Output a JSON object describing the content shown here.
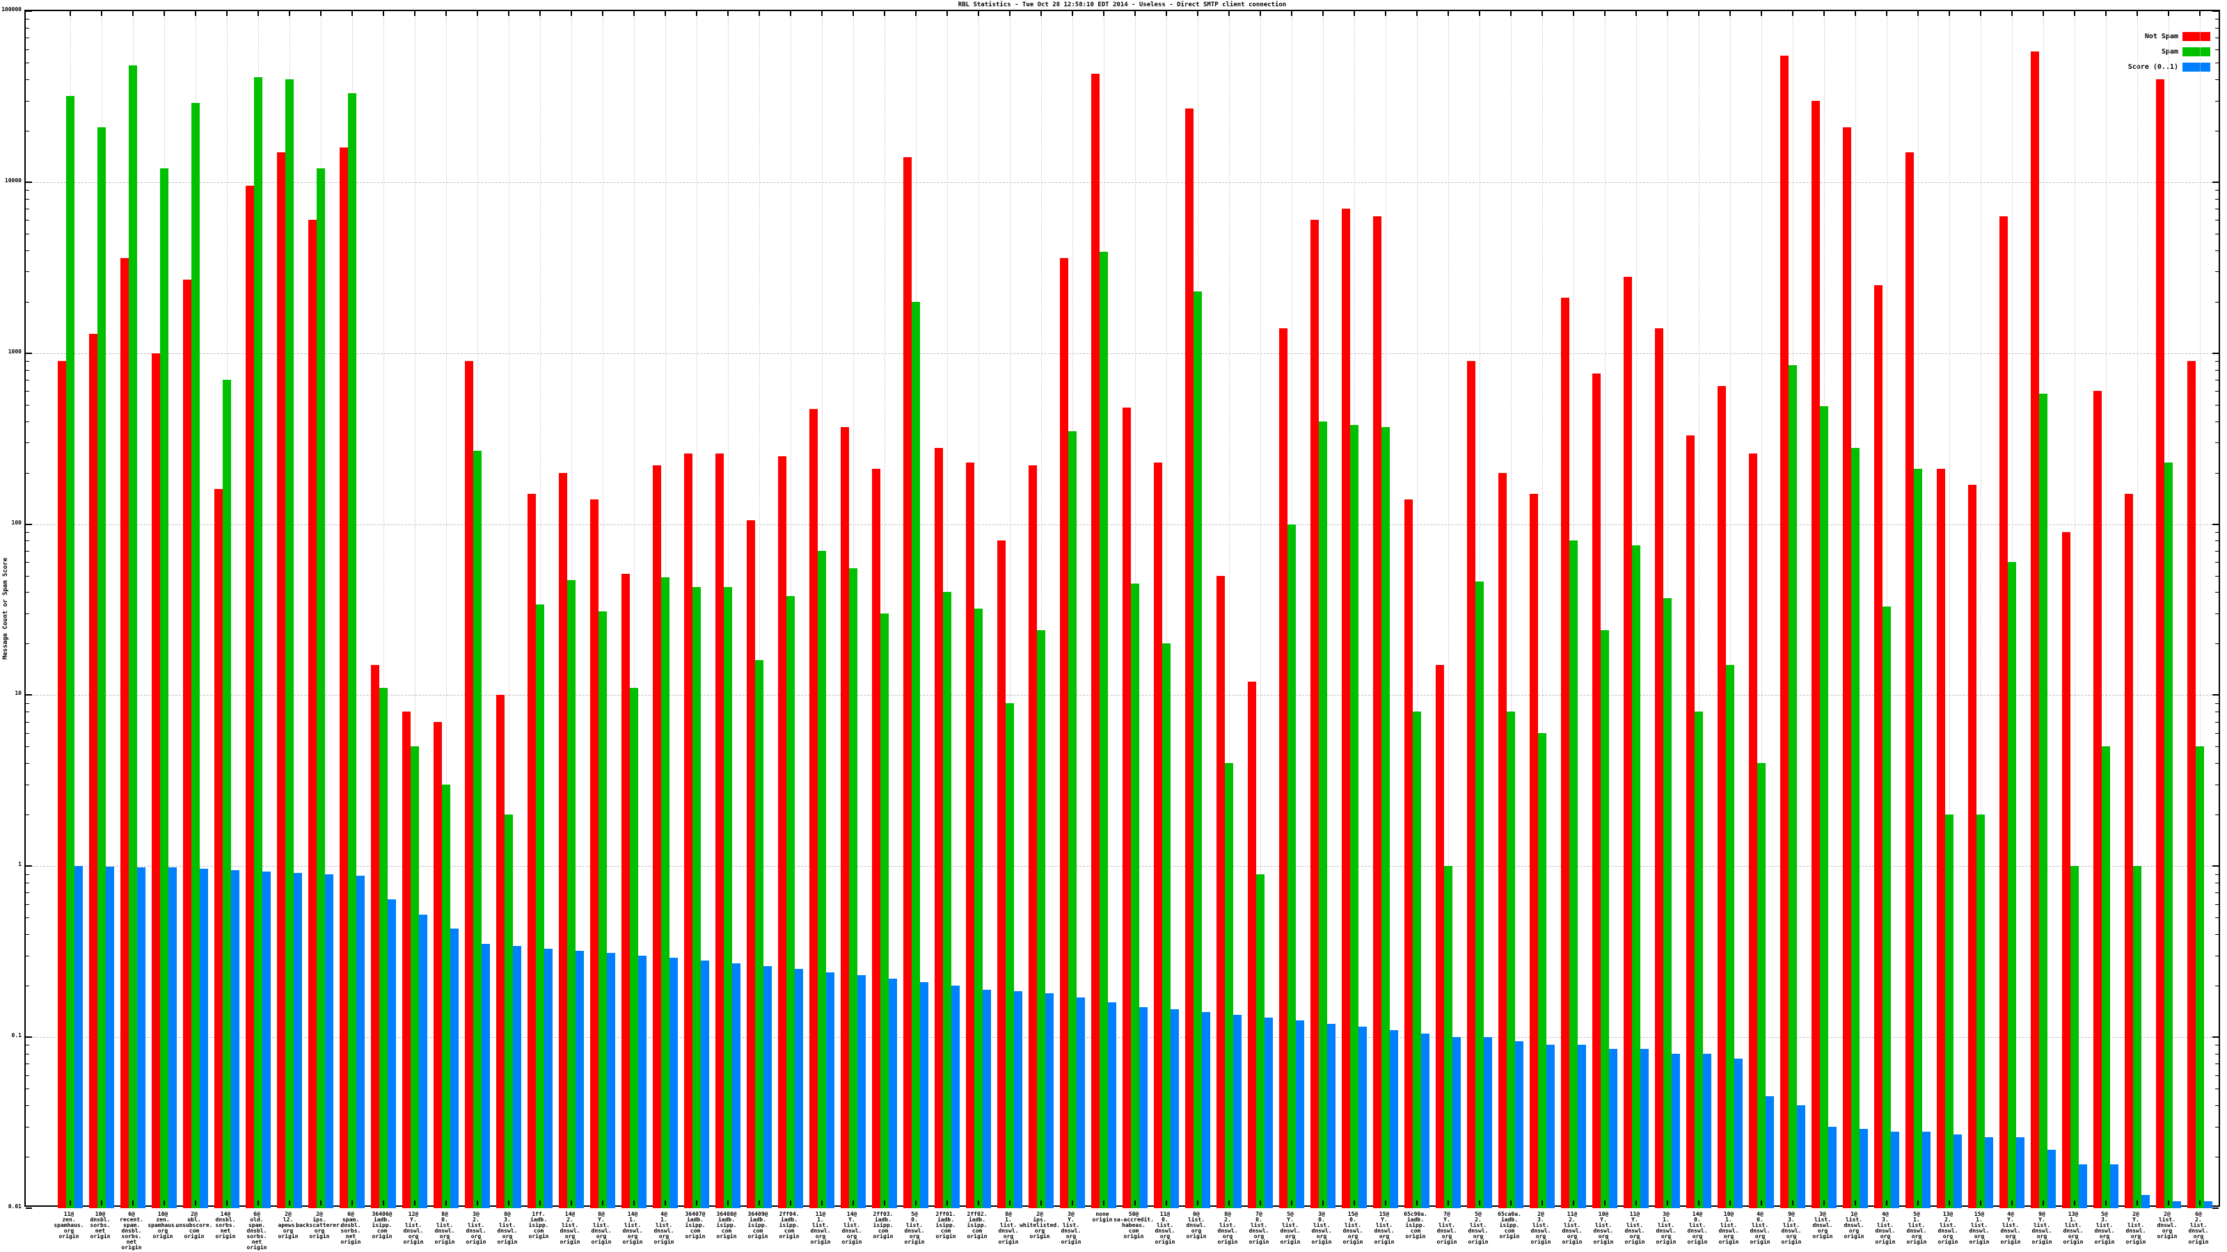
{
  "chart_data": {
    "type": "bar",
    "title": "RBL Statistics - Tue Oct 28 12:58:10 EDT 2014 - Useless - Direct SMTP client connection",
    "ylabel": "Message Count or Spam Score",
    "xlabel": "",
    "yscale": "log",
    "ylim": [
      0.01,
      100000
    ],
    "yticks": [
      100000,
      10000,
      1000,
      100,
      10,
      1,
      0.1,
      0.01
    ],
    "grid": true,
    "legend_position": "top-right",
    "axis_color": "#000000",
    "grid_color": "#bdbdbd",
    "categories": [
      "11@zen.spamhaus.org origin",
      "10@dnsbl.sorbs.net origin",
      "6@recent.spam.dnsbl.sorbs.net origin",
      "10@zen.spamhaus.org origin",
      "2@ubl.unsubscore.com origin",
      "14@dnsbl.sorbs.net origin",
      "6@old.spam.dnsbl.sorbs.net origin",
      "2@l2.apews.org origin",
      "2@ips.backscatterer.org origin",
      "6@spam.dnsbl.sorbs.net origin",
      "36406@iadb.isipp.com origin",
      "12@Y.list.dnswl.org origin",
      "8@0.list.dnswl.org origin",
      "3@2.list.dnswl.org origin",
      "8@3.list.dnswl.org origin",
      "1ff.iadb.isipp.com origin",
      "14@2.list.dnswl.org origin",
      "8@Y.list.dnswl.org origin",
      "14@1.list.dnswl.org origin",
      "4@1.list.dnswl.org origin",
      "36407@iadb.isipp.com origin",
      "36408@iadb.isipp.com origin",
      "36409@iadb.isipp.com origin",
      "2ff04.iadb.isipp.com origin",
      "11@1.list.dnswl.org origin",
      "14@Y.list.dnswl.org origin",
      "2ff03.iadb.isipp.com origin",
      "5@0.list.dnswl.org origin",
      "2ff01.iadb.isipp.com origin",
      "2ff02.iadb.isipp.com origin",
      "8@1.list.dnswl.org origin",
      "2@ips.whitelisted.org origin",
      "3@Y.list.dnswl.org origin",
      "none origin",
      "50@sa-accredit.habeas.com origin",
      "11@0.list.dnswl.org origin",
      "0@list.dnswl.org origin",
      "8@2.list.dnswl.org origin",
      "7@0.list.dnswl.org origin",
      "5@Y.list.dnswl.org origin",
      "3@0.list.dnswl.org origin",
      "15@0.list.dnswl.org origin",
      "15@Y.list.dnswl.org origin",
      "65c90a.iadb.isipp.com origin",
      "7@Y.list.dnswl.org origin",
      "5@2.list.dnswl.org origin",
      "65ca0a.iadb.isipp.com origin",
      "2@3.list.dnswl.org origin",
      "11@2.list.dnswl.org origin",
      "10@Y.list.dnswl.org origin",
      "11@Y.list.dnswl.org origin",
      "3@1.list.dnswl.org origin",
      "14@0.list.dnswl.org origin",
      "10@1.list.dnswl.org origin",
      "4@0.list.dnswl.org origin",
      "9@3.list.dnswl.org origin",
      "3@list.dnswl.org origin",
      "1@list.dnswl.org origin",
      "4@3.list.dnswl.org origin",
      "5@1.list.dnswl.org origin",
      "13@2.list.dnswl.org origin",
      "15@1.list.dnswl.org origin",
      "4@Y.list.dnswl.org origin",
      "9@Y.list.dnswl.org origin",
      "13@1.list.dnswl.org origin",
      "5@3.list.dnswl.org origin",
      "2@Y.list.dnswl.org origin",
      "2@list.dnswl.org origin",
      "6@2.list.dnswl.org origin"
    ],
    "series": [
      {
        "name": "Not Spam",
        "color": "#ff0000",
        "values": [
          900,
          1300,
          3600,
          1000,
          2700,
          160,
          9500,
          15000,
          6000,
          16000,
          15,
          8,
          7,
          900,
          10,
          150,
          200,
          140,
          51,
          220,
          260,
          260,
          105,
          250,
          470,
          370,
          210,
          14000,
          280,
          230,
          80,
          220,
          3600,
          43000,
          480,
          230,
          27000,
          50,
          12,
          1400,
          6000,
          7000,
          6300,
          140,
          15,
          900,
          200,
          150,
          2100,
          760,
          2800,
          1400,
          330,
          640,
          260,
          55000,
          30000,
          21000,
          2500,
          15000,
          210,
          170,
          6300,
          58000,
          90,
          600,
          150,
          40000,
          900
        ]
      },
      {
        "name": "Spam",
        "color": "#00c000",
        "values": [
          32000,
          21000,
          48000,
          12000,
          29000,
          700,
          41000,
          40000,
          12000,
          33000,
          11,
          5,
          3,
          270,
          2,
          34,
          47,
          31,
          11,
          49,
          43,
          43,
          16,
          38,
          70,
          55,
          30,
          2000,
          40,
          32,
          9,
          24,
          350,
          3900,
          45,
          20,
          2300,
          4,
          0.9,
          100,
          400,
          380,
          370,
          8,
          1,
          46,
          8,
          6,
          80,
          24,
          75,
          37,
          8,
          15,
          4,
          850,
          490,
          280,
          33,
          210,
          2,
          2,
          60,
          580,
          1,
          5,
          1,
          230,
          5
        ]
      },
      {
        "name": "Score (0..1)",
        "color": "#0080ff",
        "values": [
          1.0,
          0.99,
          0.98,
          0.98,
          0.97,
          0.95,
          0.93,
          0.91,
          0.9,
          0.88,
          0.64,
          0.52,
          0.43,
          0.35,
          0.34,
          0.33,
          0.32,
          0.31,
          0.3,
          0.29,
          0.28,
          0.27,
          0.26,
          0.25,
          0.24,
          0.23,
          0.22,
          0.21,
          0.2,
          0.19,
          0.185,
          0.18,
          0.17,
          0.16,
          0.15,
          0.145,
          0.14,
          0.135,
          0.13,
          0.125,
          0.12,
          0.115,
          0.11,
          0.105,
          0.1,
          0.1,
          0.095,
          0.09,
          0.09,
          0.085,
          0.085,
          0.08,
          0.08,
          0.075,
          0.045,
          0.04,
          0.03,
          0.029,
          0.028,
          0.028,
          0.027,
          0.026,
          0.026,
          0.022,
          0.018,
          0.018,
          0.012,
          0.011,
          0.011
        ]
      }
    ]
  }
}
